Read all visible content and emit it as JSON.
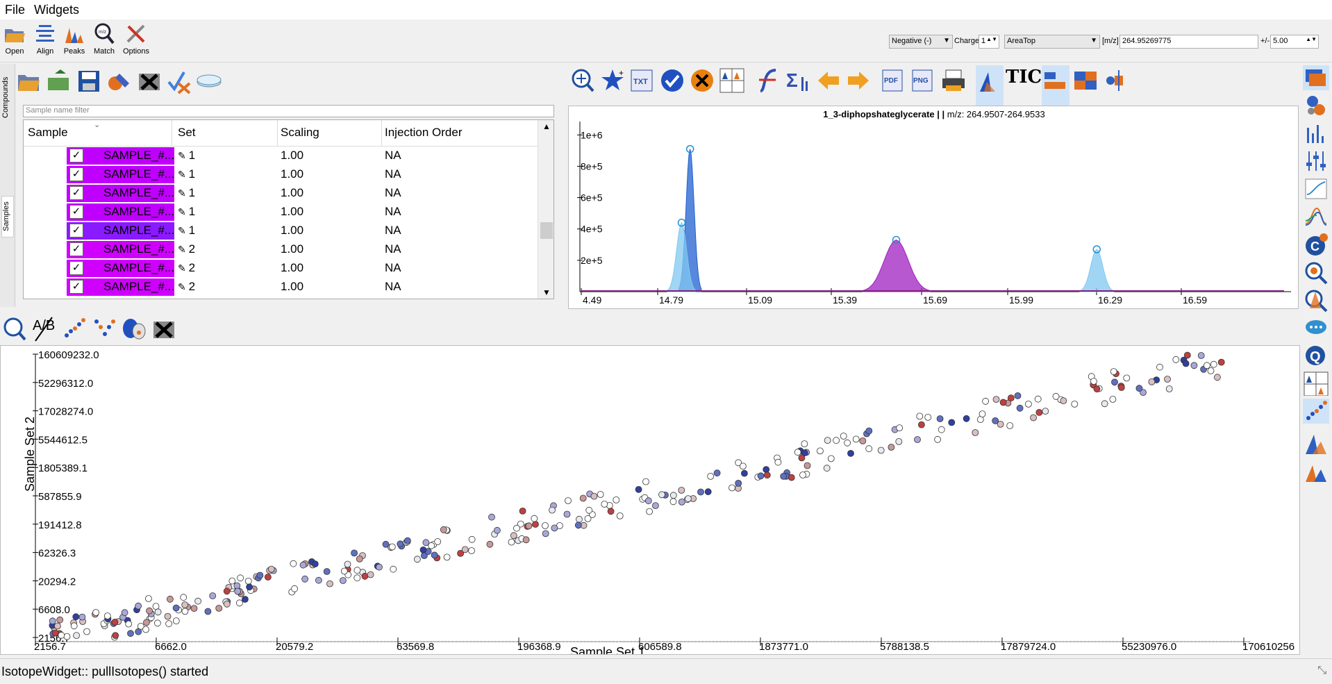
{
  "menu": {
    "file": "File",
    "widgets": "Widgets"
  },
  "toolbar": {
    "buttons": [
      {
        "label": "Open",
        "icon": "folder-open-icon"
      },
      {
        "label": "Align",
        "icon": "align-icon"
      },
      {
        "label": "Peaks",
        "icon": "peaks-icon"
      },
      {
        "label": "Match",
        "icon": "match-icon"
      },
      {
        "label": "Options",
        "icon": "options-icon"
      }
    ],
    "ionization": "Negative (-)",
    "charge_label": "Charge",
    "charge_value": "1",
    "quant_type": "AreaTop",
    "mz_label": "[m/z]",
    "mz_value": "264.95269775",
    "tol_label": "+/-",
    "tol_value": "5.00"
  },
  "lefttabs": {
    "compounds": "Compounds",
    "samples": "Samples"
  },
  "samples": {
    "filter_placeholder": "Sample name filter",
    "columns": [
      "Sample",
      "Set",
      "Scaling",
      "Injection Order"
    ],
    "rows": [
      {
        "name": "SAMPLE_#...",
        "set": "1",
        "scaling": "1.00",
        "injection": "NA",
        "checked": "✓",
        "color": "#c000ff"
      },
      {
        "name": "SAMPLE_#...",
        "set": "1",
        "scaling": "1.00",
        "injection": "NA",
        "checked": "✓",
        "color": "#c000ff"
      },
      {
        "name": "SAMPLE_#...",
        "set": "1",
        "scaling": "1.00",
        "injection": "NA",
        "checked": "✓",
        "color": "#c000ff"
      },
      {
        "name": "SAMPLE_#...",
        "set": "1",
        "scaling": "1.00",
        "injection": "NA",
        "checked": "✓",
        "color": "#c000ff"
      },
      {
        "name": "SAMPLE_#...",
        "set": "1",
        "scaling": "1.00",
        "injection": "NA",
        "checked": "✓",
        "color": "#8a1aff"
      },
      {
        "name": "SAMPLE_#...",
        "set": "2",
        "scaling": "1.00",
        "injection": "NA",
        "checked": "✓",
        "color": "#d000ff"
      },
      {
        "name": "SAMPLE_#...",
        "set": "2",
        "scaling": "1.00",
        "injection": "NA",
        "checked": "✓",
        "color": "#d000ff"
      },
      {
        "name": "SAMPLE_#...",
        "set": "2",
        "scaling": "1.00",
        "injection": "NA",
        "checked": "✓",
        "color": "#d000ff"
      }
    ]
  },
  "eic": {
    "title_bold": "1_3-diphopshateglycerate | |",
    "title_rest": " m/z: 264.9507-264.9533",
    "tic_label": "TIC",
    "txt_icon": "TXT",
    "pdf_icon": "PDF",
    "png_icon": "PNG"
  },
  "scatter_toolbar": {
    "ab_label": "A/B"
  },
  "chart_data": [
    {
      "type": "line",
      "title": "1_3-diphopshateglycerate | | m/z: 264.9507-264.9533",
      "xlabel": "",
      "ylabel": "",
      "x_ticks": [
        "4.49",
        "14.79",
        "15.09",
        "15.39",
        "15.69",
        "15.99",
        "16.29",
        "16.59"
      ],
      "y_ticks": [
        "2e+5",
        "4e+5",
        "6e+5",
        "8e+5",
        "1e+6"
      ],
      "ylim": [
        0,
        1050000
      ],
      "peaks": [
        {
          "rt": 14.89,
          "height": 910000,
          "width": 0.04,
          "color": "#2060d0"
        },
        {
          "rt": 14.86,
          "height": 440000,
          "width": 0.05,
          "color": "#80c8f0"
        },
        {
          "rt": 15.62,
          "height": 330000,
          "width": 0.12,
          "color": "#a020c0"
        },
        {
          "rt": 16.33,
          "height": 270000,
          "width": 0.06,
          "color": "#80c8f0"
        }
      ]
    },
    {
      "type": "scatter",
      "xlabel": "Sample Set 1",
      "ylabel": "Sample Set 2",
      "x_ticks": [
        "2156.7",
        "6662.0",
        "20579.2",
        "63569.8",
        "196368.9",
        "606589.8",
        "1873771.0",
        "5788138.5",
        "17879724.0",
        "55230976.0",
        "170610256"
      ],
      "y_ticks": [
        "2156.7",
        "6608.0",
        "20294.2",
        "62326.3",
        "191412.8",
        "587855.9",
        "1805389.1",
        "5544612.5",
        "17028274.0",
        "52296312.0",
        "160609232.0"
      ],
      "scale": "log",
      "xlim": [
        2156.7,
        170610256
      ],
      "ylim": [
        2156.7,
        160609232
      ]
    }
  ],
  "status": {
    "message": "IsotopeWidget:: pullIsotopes() started"
  }
}
